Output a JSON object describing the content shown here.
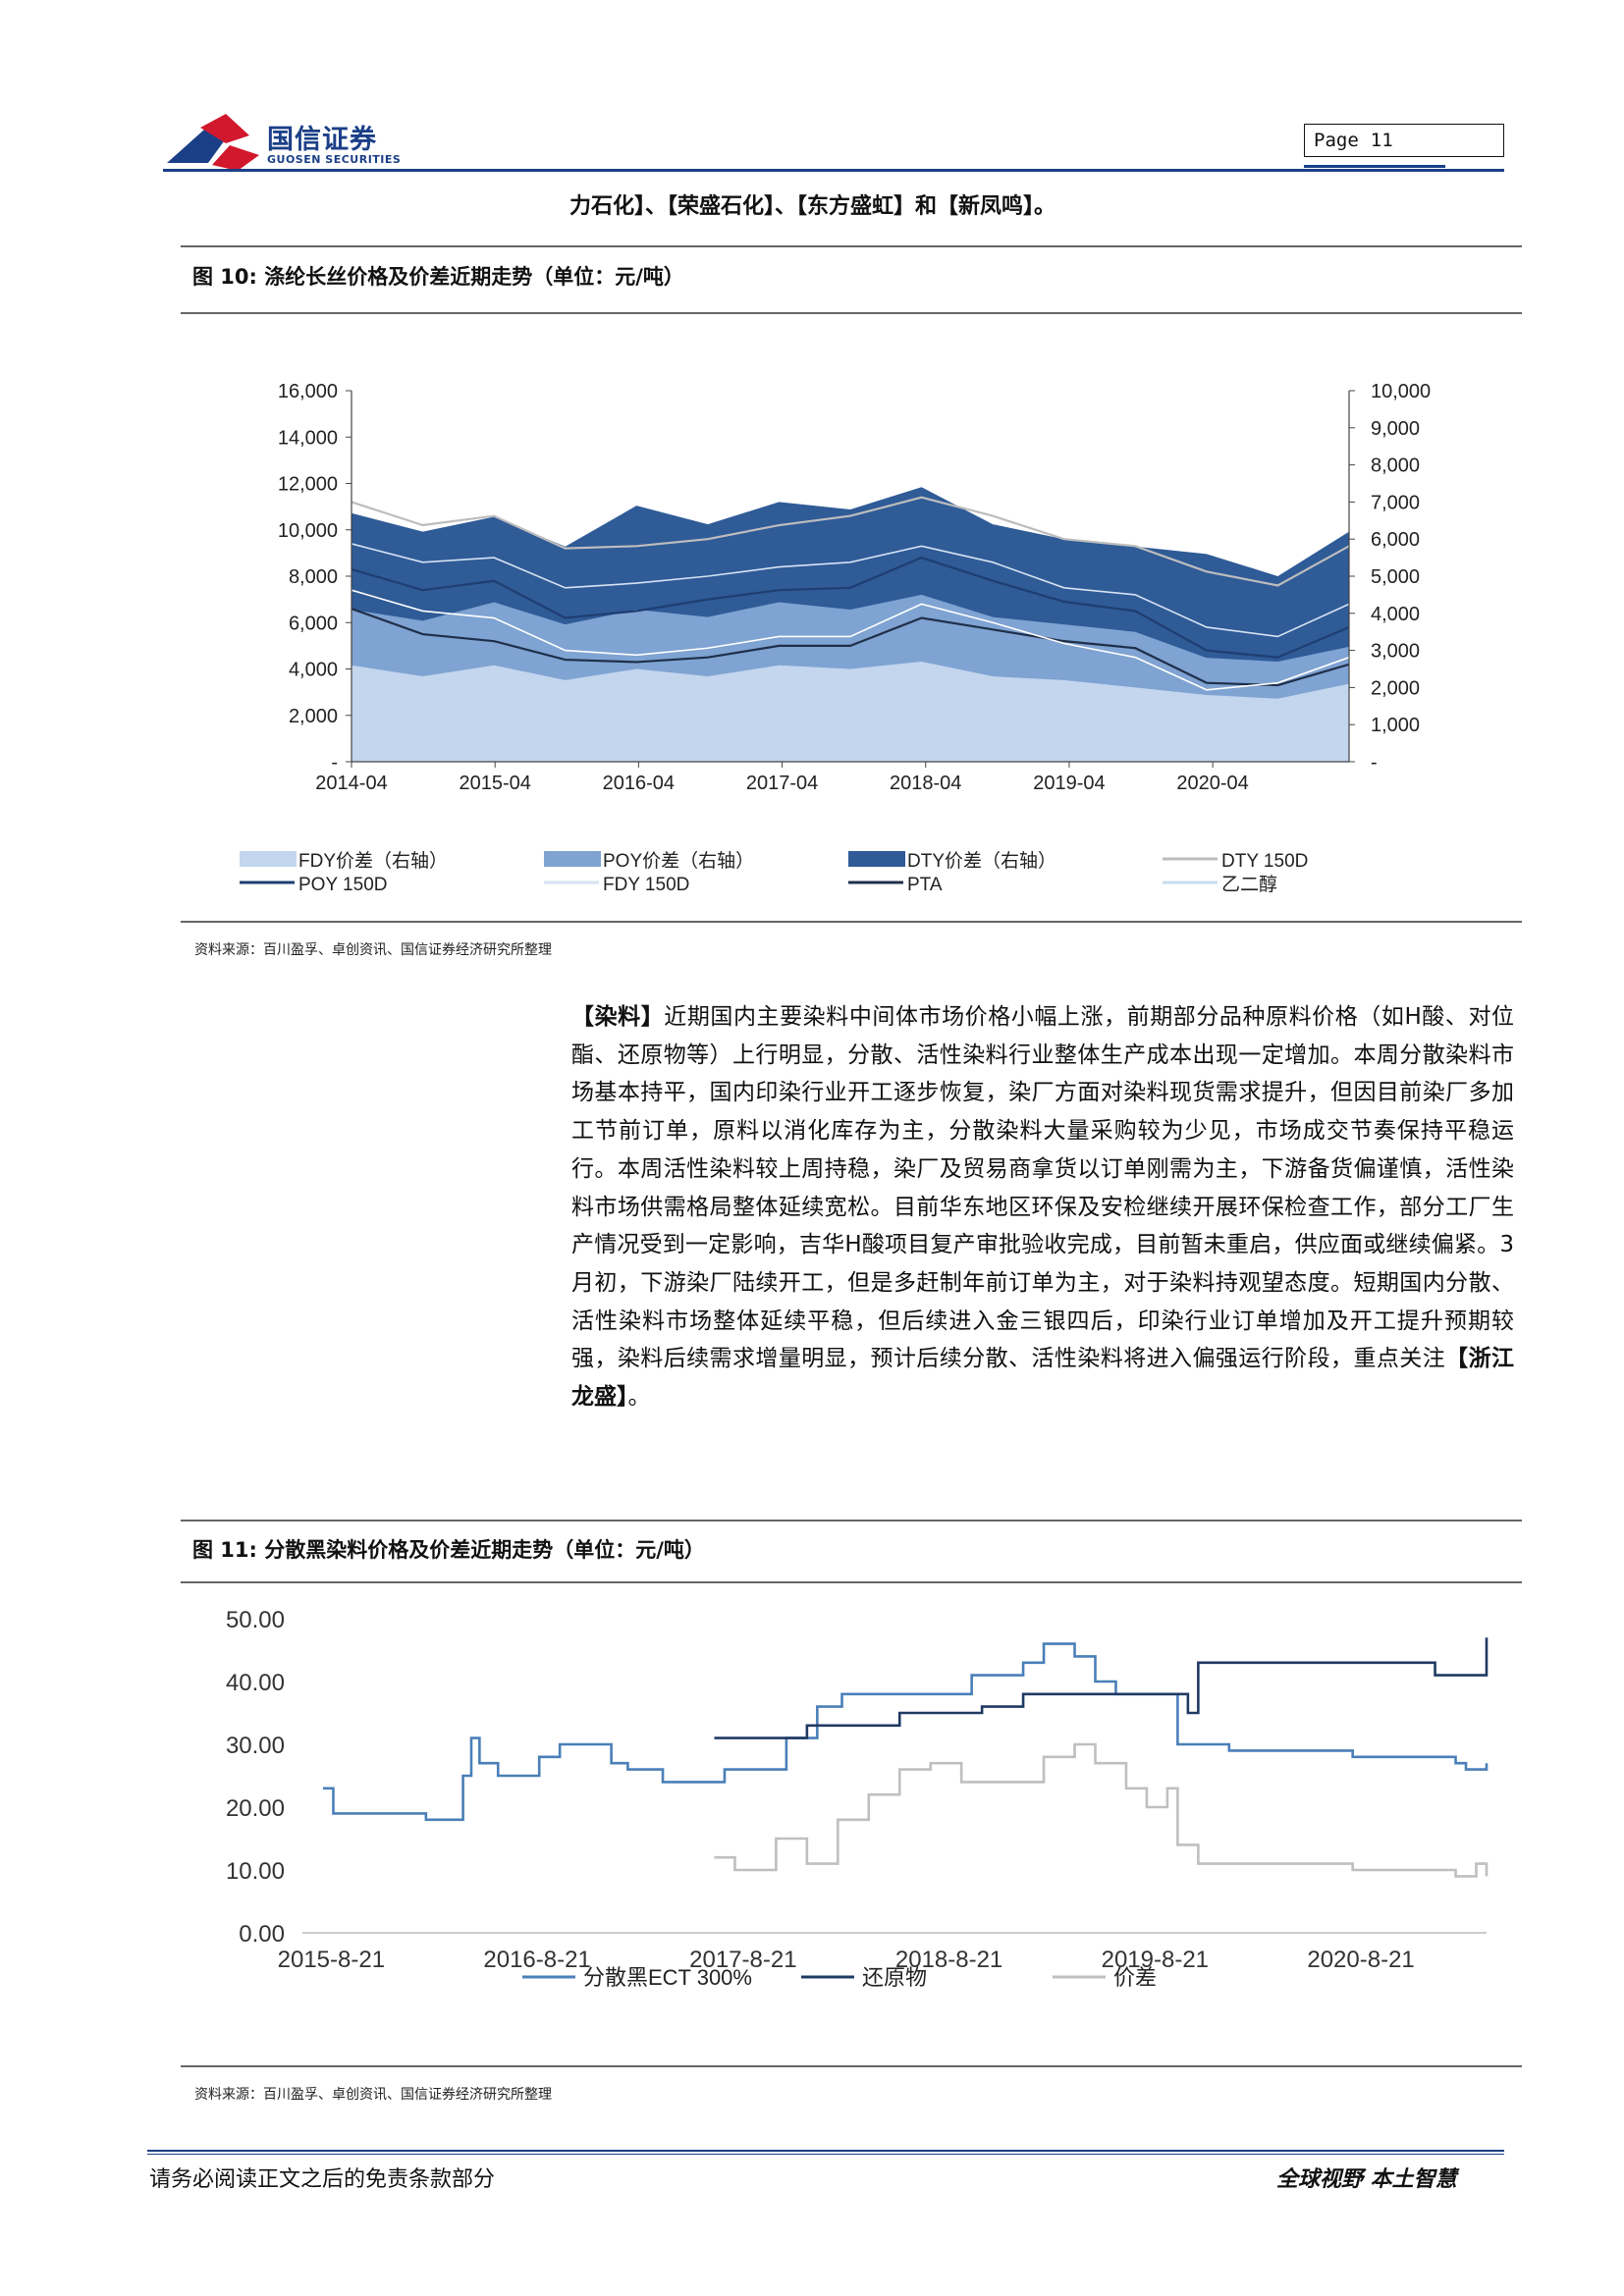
{
  "header": {
    "logo_cn": "国信证券",
    "logo_en": "GUOSEN SECURITIES",
    "page_label": "Page",
    "page_number": "11"
  },
  "continuation_text": "力石化】、【荣盛石化】、【东方盛虹】和【新凤鸣】。",
  "figure10": {
    "title": "图 10:  涤纶长丝价格及价差近期走势（单位：元/吨）",
    "source": "资料来源：百川盈孚、卓创资讯、国信证券经济研究所整理",
    "chart_data": {
      "type": "area",
      "x_tick_labels": [
        "2014-04",
        "2015-04",
        "2016-04",
        "2017-04",
        "2018-04",
        "2019-04",
        "2020-04"
      ],
      "y_left_tick_labels": [
        "16,000",
        "14,000",
        "12,000",
        "10,000",
        "8,000",
        "6,000",
        "4,000",
        "2,000",
        "-"
      ],
      "y_left_range": [
        0,
        16000
      ],
      "y_right_tick_labels": [
        "10,000",
        "9,000",
        "8,000",
        "7,000",
        "6,000",
        "5,000",
        "4,000",
        "3,000",
        "2,000",
        "1,000",
        "-"
      ],
      "y_right_range": [
        0,
        10000
      ],
      "legend": [
        "FDY价差（右轴）",
        "POY价差（右轴）",
        "DTY价差（右轴）",
        "DTY 150D",
        "POY 150D",
        "FDY 150D",
        "PTA",
        "乙二醇"
      ],
      "colors": {
        "fdy_spread": "#c3d6ee",
        "poy_spread": "#7fa3d2",
        "dty_spread": "#2f5b97",
        "dty_150d": "#bdbdbd",
        "poy_150d": "#1f3e72",
        "fdy_150d": "#d6e3f3",
        "pta": "#1f2f4a",
        "meg": "#ffffff"
      },
      "x": [
        2014.0,
        2014.5,
        2015.0,
        2015.5,
        2016.0,
        2016.5,
        2017.0,
        2017.5,
        2018.0,
        2018.5,
        2019.0,
        2019.5,
        2020.0,
        2020.5,
        2021.0
      ],
      "series": [
        {
          "name": "DTY价差（右轴）",
          "axis": "right",
          "values": [
            6700,
            6200,
            6600,
            5800,
            6900,
            6400,
            7000,
            6800,
            7400,
            6400,
            6000,
            5800,
            5600,
            5000,
            6200
          ]
        },
        {
          "name": "POY价差（右轴）",
          "axis": "right",
          "values": [
            4100,
            3800,
            4300,
            3700,
            4100,
            3900,
            4300,
            4100,
            4500,
            3900,
            3700,
            3500,
            2800,
            2700,
            3100
          ]
        },
        {
          "name": "FDY价差（右轴）",
          "axis": "right",
          "values": [
            2600,
            2300,
            2600,
            2200,
            2500,
            2300,
            2600,
            2500,
            2700,
            2300,
            2200,
            2000,
            1800,
            1700,
            2100
          ]
        },
        {
          "name": "DTY 150D",
          "axis": "left",
          "values": [
            11200,
            10200,
            10600,
            9200,
            9300,
            9600,
            10200,
            10600,
            11400,
            10600,
            9600,
            9300,
            8200,
            7600,
            9300
          ]
        },
        {
          "name": "FDY 150D",
          "axis": "left",
          "values": [
            9400,
            8600,
            8800,
            7500,
            7700,
            8000,
            8400,
            8600,
            9300,
            8600,
            7500,
            7200,
            5800,
            5400,
            6800
          ]
        },
        {
          "name": "POY 150D",
          "axis": "left",
          "values": [
            8300,
            7400,
            7800,
            6200,
            6500,
            7000,
            7400,
            7500,
            8800,
            7800,
            6900,
            6500,
            4800,
            4500,
            5800
          ]
        },
        {
          "name": "PTA",
          "axis": "left",
          "values": [
            6600,
            5500,
            5200,
            4400,
            4300,
            4500,
            5000,
            5000,
            6200,
            5700,
            5200,
            4900,
            3400,
            3300,
            4200
          ]
        },
        {
          "name": "乙二醇",
          "axis": "left",
          "values": [
            7400,
            6500,
            6200,
            4800,
            4600,
            4900,
            5400,
            5400,
            6800,
            6000,
            5100,
            4500,
            3100,
            3400,
            4500
          ]
        }
      ]
    }
  },
  "body": {
    "keyword": "【染料】",
    "text": "近期国内主要染料中间体市场价格小幅上涨，前期部分品种原料价格（如H酸、对位酯、还原物等）上行明显，分散、活性染料行业整体生产成本出现一定增加。本周分散染料市场基本持平，国内印染行业开工逐步恢复，染厂方面对染料现货需求提升，但因目前染厂多加工节前订单，原料以消化库存为主，分散染料大量采购较为少见，市场成交节奏保持平稳运行。本周活性染料较上周持稳，染厂及贸易商拿货以订单刚需为主，下游备货偏谨慎，活性染料市场供需格局整体延续宽松。目前华东地区环保及安检继续开展环保检查工作，部分工厂生产情况受到一定影响，吉华H酸项目复产审批验收完成，目前暂未重启，供应面或继续偏紧。3月初，下游染厂陆续开工，但是多赶制年前订单为主，对于染料持观望态度。短期国内分散、活性染料市场整体延续平稳，但后续进入金三银四后，印染行业订单增加及开工提升预期较强，染料后续需求增量明显，预计后续分散、活性染料将进入偏强运行阶段，重点关注",
    "closing": "【浙江龙盛】",
    "period": "。"
  },
  "figure11": {
    "title": "图 11:  分散黑染料价格及价差近期走势（单位：元/吨）",
    "source": "资料来源：百川盈孚、卓创资讯、国信证券经济研究所整理",
    "chart_data": {
      "type": "line",
      "x_tick_labels": [
        "2015-8-21",
        "2016-8-21",
        "2017-8-21",
        "2018-8-21",
        "2019-8-21",
        "2020-8-21"
      ],
      "x_range": [
        2015.5,
        2021.25
      ],
      "y_tick_labels": [
        "50.00",
        "40.00",
        "30.00",
        "20.00",
        "10.00",
        "0.00"
      ],
      "ylim": [
        0,
        50
      ],
      "legend": [
        "分散黑ECT 300%",
        "还原物",
        "价差"
      ],
      "colors": {
        "ect300": "#4a7fb8",
        "reduct": "#1f3a63",
        "spread": "#bfbfbf"
      },
      "series": [
        {
          "name": "分散黑ECT 300%",
          "x": [
            2015.6,
            2015.65,
            2015.9,
            2016.1,
            2016.2,
            2016.28,
            2016.32,
            2016.36,
            2016.45,
            2016.55,
            2016.65,
            2016.75,
            2016.9,
            2017.0,
            2017.08,
            2017.25,
            2017.4,
            2017.55,
            2017.7,
            2017.85,
            2018.0,
            2018.12,
            2018.28,
            2018.45,
            2018.6,
            2018.75,
            2018.9,
            2019.0,
            2019.1,
            2019.25,
            2019.35,
            2019.45,
            2019.55,
            2019.68,
            2019.75,
            2019.85,
            2020.0,
            2020.2,
            2020.4,
            2020.6,
            2020.8,
            2020.9,
            2021.0,
            2021.1,
            2021.15,
            2021.25
          ],
          "values": [
            23,
            19,
            19,
            18,
            18,
            25,
            31,
            27,
            25,
            25,
            28,
            30,
            30,
            27,
            26,
            24,
            24,
            26,
            26,
            31,
            36,
            38,
            38,
            38,
            38,
            41,
            41,
            43,
            46,
            44,
            40,
            38,
            38,
            38,
            30,
            30,
            29,
            29,
            29,
            28,
            28,
            28,
            28,
            27,
            26,
            27
          ]
        },
        {
          "name": "还原物",
          "x": [
            2017.5,
            2017.75,
            2017.95,
            2018.2,
            2018.4,
            2018.6,
            2018.8,
            2019.0,
            2019.2,
            2019.4,
            2019.6,
            2019.7,
            2019.8,
            2019.85,
            2020.0,
            2020.3,
            2020.6,
            2020.9,
            2021.0,
            2021.15,
            2021.2,
            2021.25
          ],
          "values": [
            31,
            31,
            33,
            33,
            35,
            35,
            36,
            38,
            38,
            38,
            38,
            38,
            35,
            43,
            43,
            43,
            43,
            43,
            41,
            41,
            41,
            47
          ]
        },
        {
          "name": "价差",
          "x": [
            2017.5,
            2017.6,
            2017.8,
            2017.95,
            2018.1,
            2018.25,
            2018.4,
            2018.55,
            2018.7,
            2018.85,
            2019.0,
            2019.1,
            2019.25,
            2019.35,
            2019.5,
            2019.6,
            2019.7,
            2019.75,
            2019.85,
            2020.0,
            2020.3,
            2020.6,
            2020.9,
            2021.0,
            2021.1,
            2021.2,
            2021.25
          ],
          "values": [
            12,
            10,
            15,
            11,
            18,
            22,
            26,
            27,
            24,
            24,
            24,
            28,
            30,
            27,
            23,
            20,
            23,
            14,
            11,
            11,
            11,
            10,
            10,
            10,
            9,
            11,
            9
          ]
        }
      ]
    }
  },
  "footer": {
    "left": "请务必阅读正文之后的免责条款部分",
    "right": "全球视野   本土智慧"
  }
}
